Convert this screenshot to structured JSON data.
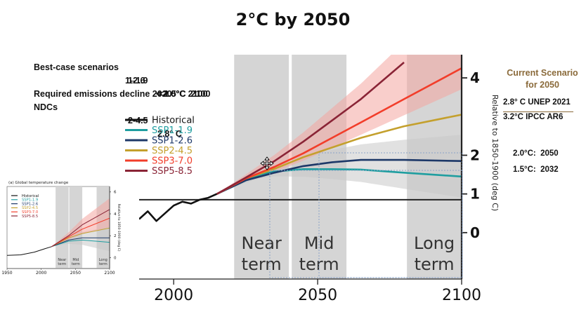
{
  "title": "2°C by 2050",
  "notes": [
    {
      "label": "Best-case scenarios",
      "ssp": "1-1.9",
      "value": "<1.5°C  2100"
    },
    {
      "label": "",
      "ssp": "1-2.6",
      "value": "< 2.0°C 2100"
    },
    {
      "label": "Required emissions decline 2020",
      "ssp": "",
      "value": ""
    },
    {
      "label": "NDCs",
      "ssp": "2-4.5",
      "value": "2.8° C"
    }
  ],
  "current_scenario": {
    "title_line1": "Current Scenario",
    "title_line2": "for 2050",
    "unep": "2.8° C UNEP 2021",
    "ipcc": "3.2°C IPCC AR6",
    "threshold_2": "2.0°C:  2050",
    "threshold_15": "1.5°C:  2032"
  },
  "colors": {
    "Historical": "#111111",
    "SSP1-1.9": "#1f9ea0",
    "SSP1-2.6": "#1d3868",
    "SSP2-4.5": "#c4a02d",
    "SSP3-7.0": "#f23d2a",
    "SSP5-8.5": "#8a2436",
    "band_gray": "#d5d5d5",
    "shade_red": "#f4a6a0",
    "shade_gray": "#c8c8c8"
  },
  "chart_data": [
    {
      "type": "line",
      "title": "",
      "xlabel": "",
      "ylabel": "Relative to 1850-1900 (deg C)",
      "xlim": [
        1988,
        2100
      ],
      "ylim": [
        -1.2,
        4.6
      ],
      "x_ticks": [
        2000,
        2050,
        2100
      ],
      "y_ticks": [
        0,
        1,
        2,
        4
      ],
      "period_bands": [
        {
          "label_line1": "Near",
          "label_line2": "term",
          "x": [
            2021,
            2040
          ]
        },
        {
          "label_line1": "Mid",
          "label_line2": "term",
          "x": [
            2041,
            2060
          ]
        },
        {
          "label_line1": "Long",
          "label_line2": "term",
          "x": [
            2081,
            2100
          ]
        }
      ],
      "reference_line_y": 0.85,
      "legend": "left",
      "series": [
        {
          "name": "Historical",
          "x": [
            1988,
            1991,
            1994,
            1997,
            2000,
            2003,
            2006,
            2009,
            2012,
            2015
          ],
          "y": [
            0.35,
            0.55,
            0.3,
            0.5,
            0.7,
            0.8,
            0.75,
            0.85,
            0.9,
            1.0
          ]
        },
        {
          "name": "SSP1-1.9",
          "x": [
            2015,
            2025,
            2030,
            2035,
            2045,
            2055,
            2065,
            2080,
            2100
          ],
          "y": [
            1.0,
            1.35,
            1.5,
            1.58,
            1.64,
            1.64,
            1.63,
            1.55,
            1.45
          ]
        },
        {
          "name": "SSP1-2.6",
          "x": [
            2015,
            2025,
            2035,
            2045,
            2055,
            2065,
            2080,
            2100
          ],
          "y": [
            1.0,
            1.35,
            1.55,
            1.72,
            1.82,
            1.88,
            1.88,
            1.85
          ]
        },
        {
          "name": "SSP2-4.5",
          "x": [
            2015,
            2025,
            2035,
            2045,
            2055,
            2065,
            2080,
            2100
          ],
          "y": [
            1.0,
            1.4,
            1.65,
            1.95,
            2.2,
            2.45,
            2.75,
            3.05
          ]
        },
        {
          "name": "SSP3-7.0",
          "x": [
            2015,
            2025,
            2035,
            2045,
            2055,
            2065,
            2080,
            2100
          ],
          "y": [
            1.0,
            1.4,
            1.7,
            2.05,
            2.45,
            2.85,
            3.45,
            4.25
          ]
        },
        {
          "name": "SSP5-8.5",
          "x": [
            2015,
            2025,
            2035,
            2045,
            2055,
            2065,
            2080
          ],
          "y": [
            1.0,
            1.42,
            1.85,
            2.35,
            2.9,
            3.45,
            4.4
          ]
        }
      ]
    },
    {
      "type": "line",
      "title": "(a) Global temperature change",
      "xlabel": "",
      "ylabel": "Relative to 1850-1900 (deg C)",
      "xlim": [
        1950,
        2100
      ],
      "ylim": [
        -1,
        6.5
      ],
      "x_ticks": [
        1950,
        2000,
        2050,
        2100
      ],
      "y_ticks": [
        0,
        2,
        4,
        6
      ],
      "period_bands": [
        {
          "label_line1": "Near",
          "label_line2": "term",
          "x": [
            2021,
            2040
          ]
        },
        {
          "label_line1": "Mid",
          "label_line2": "term",
          "x": [
            2041,
            2060
          ]
        },
        {
          "label_line1": "Long",
          "label_line2": "term",
          "x": [
            2081,
            2100
          ]
        }
      ],
      "legend": "top-left",
      "series": [
        {
          "name": "Historical",
          "x": [
            1950,
            1970,
            1990,
            2005,
            2015
          ],
          "y": [
            0.2,
            0.25,
            0.5,
            0.8,
            1.0
          ]
        },
        {
          "name": "SSP1-1.9",
          "x": [
            2015,
            2040,
            2060,
            2100
          ],
          "y": [
            1.0,
            1.5,
            1.6,
            1.4
          ]
        },
        {
          "name": "SSP1-2.6",
          "x": [
            2015,
            2040,
            2060,
            2100
          ],
          "y": [
            1.0,
            1.6,
            1.8,
            1.8
          ]
        },
        {
          "name": "SSP2-4.5",
          "x": [
            2015,
            2040,
            2060,
            2100
          ],
          "y": [
            1.0,
            1.8,
            2.2,
            2.7
          ]
        },
        {
          "name": "SSP3-7.0",
          "x": [
            2015,
            2040,
            2060,
            2100
          ],
          "y": [
            1.0,
            1.9,
            2.6,
            3.6
          ]
        },
        {
          "name": "SSP5-8.5",
          "x": [
            2015,
            2040,
            2060,
            2100
          ],
          "y": [
            1.0,
            2.0,
            3.0,
            4.4
          ]
        }
      ]
    }
  ]
}
